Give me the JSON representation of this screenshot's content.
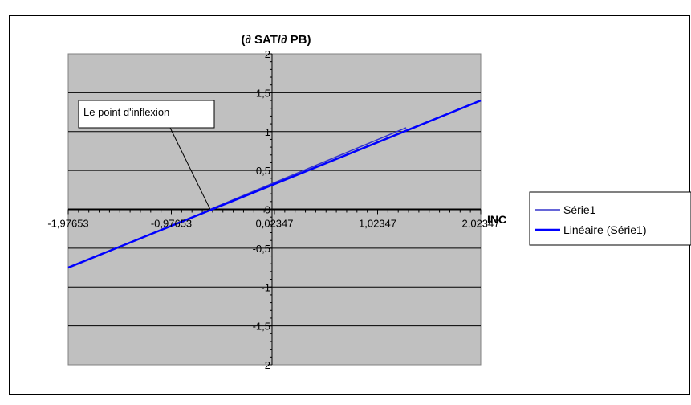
{
  "chart_data": {
    "type": "line",
    "title": "(∂ SAT/∂ PB)",
    "xlabel": "INC",
    "ylabel": "",
    "xlim": [
      -1.97653,
      2.02347
    ],
    "ylim": [
      -2,
      2
    ],
    "x_ticks": [
      "-1,97653",
      "-0,97653",
      "0,02347",
      "1,02347",
      "2,02347"
    ],
    "y_ticks": [
      "2",
      "1,5",
      "1",
      "0,5",
      "0",
      "-0,5",
      "-1",
      "-1,5",
      "-2"
    ],
    "grid": true,
    "plot_background": "#c0c0c0",
    "legend_position": "right",
    "series": [
      {
        "name": "Série1",
        "color": "#3333cc",
        "x": [
          -0.6,
          1.3
        ],
        "y": [
          0.0,
          1.05
        ]
      },
      {
        "name": "Linéaire (Série1)",
        "color": "#0000ff",
        "x": [
          -1.97653,
          2.02347
        ],
        "y": [
          -0.75,
          1.4
        ]
      }
    ],
    "annotation": {
      "text": "Le point d'inflexion",
      "x": -0.6,
      "y": 0.0
    }
  }
}
